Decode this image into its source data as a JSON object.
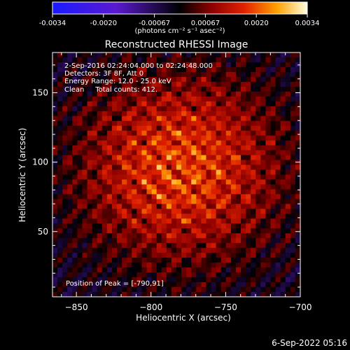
{
  "colorbar": {
    "tick_labels": [
      "-0.0034",
      "-0.0020",
      "-0.00067",
      "0.00067",
      "0.0020",
      "0.0034"
    ],
    "units": "(photons cm⁻² s⁻¹ asec⁻²)"
  },
  "chart_data": {
    "type": "heatmap",
    "title": "Reconstructed RHESSI Image",
    "xlabel": "Heliocentric X (arcsec)",
    "ylabel": "Heliocentric Y (arcsec)",
    "xlim": [
      -866,
      -700
    ],
    "ylim": [
      3,
      179
    ],
    "x_ticks": [
      -850,
      -800,
      -750,
      -700
    ],
    "y_ticks": [
      50,
      100,
      150
    ],
    "x_tick_labels": [
      "−850",
      "−800",
      "−750",
      "−700"
    ],
    "y_tick_labels": [
      "50",
      "100",
      "150"
    ],
    "value_range": [
      -0.0034,
      0.0034
    ],
    "peak_position": [
      -790,
      91
    ],
    "annotations": [
      "2-Sep-2016 02:24:04.000 to 02:24:48.000",
      "Detectors: 3F 8F, Att 0",
      "Energy Range: 12.0 - 25.0 keV",
      "Clean     Total counts: 412.",
      "Position of Peak = [-790,91]"
    ]
  },
  "footer": {
    "date": "6-Sep-2022 05:16"
  }
}
